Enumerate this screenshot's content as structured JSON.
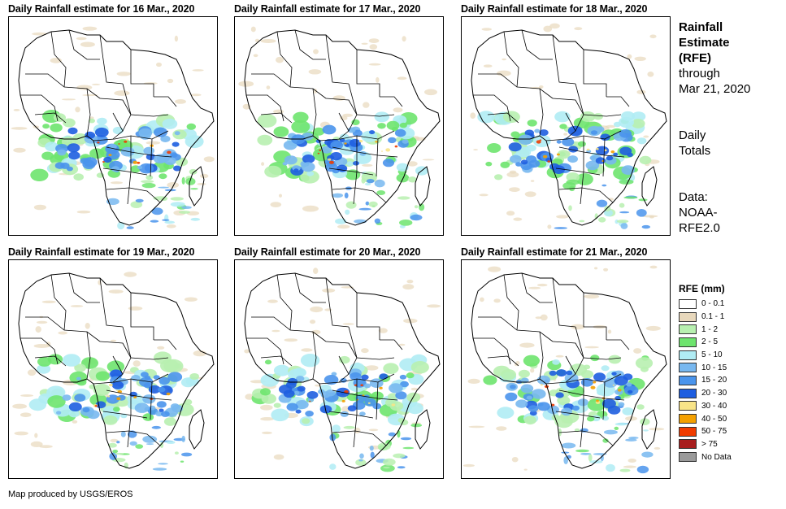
{
  "panels": [
    {
      "title": "Daily Rainfall estimate for 16 Mar., 2020",
      "rain_seed": 1
    },
    {
      "title": "Daily Rainfall estimate for 17 Mar., 2020",
      "rain_seed": 2
    },
    {
      "title": "Daily Rainfall estimate for 18 Mar., 2020",
      "rain_seed": 3
    },
    {
      "title": "Daily Rainfall estimate for 19 Mar., 2020",
      "rain_seed": 4
    },
    {
      "title": "Daily Rainfall estimate for 20 Mar., 2020",
      "rain_seed": 5
    },
    {
      "title": "Daily Rainfall estimate for 21 Mar., 2020",
      "rain_seed": 6
    }
  ],
  "sidebar": {
    "title_line1": "Rainfall",
    "title_line2": "Estimate",
    "title_line3": "(RFE)",
    "through_label": "through",
    "through_date": "Mar 21, 2020",
    "totals_line1": "Daily",
    "totals_line2": "Totals",
    "data_label": "Data:",
    "data_source_line1": "NOAA-",
    "data_source_line2": "RFE2.0"
  },
  "legend": {
    "title": "RFE (mm)",
    "items": [
      {
        "label": "0 - 0.1",
        "color": "#ffffff"
      },
      {
        "label": "0.1 - 1",
        "color": "#e8d8bc"
      },
      {
        "label": "1 - 2",
        "color": "#b8f0b0"
      },
      {
        "label": "2 - 5",
        "color": "#6ee46e"
      },
      {
        "label": "5 - 10",
        "color": "#b0ecf4"
      },
      {
        "label": "10 - 15",
        "color": "#78b8f0"
      },
      {
        "label": "15 - 20",
        "color": "#4a94ec"
      },
      {
        "label": "20 - 30",
        "color": "#1e5ee0"
      },
      {
        "label": "30 - 40",
        "color": "#f8e488"
      },
      {
        "label": "40 - 50",
        "color": "#f4a000"
      },
      {
        "label": "50 - 75",
        "color": "#f03c00"
      },
      {
        "label": "> 75",
        "color": "#a81e1e"
      },
      {
        "label": "No Data",
        "color": "#9a9a9a"
      }
    ]
  },
  "footer": {
    "credit": "Map produced by USGS/EROS"
  }
}
